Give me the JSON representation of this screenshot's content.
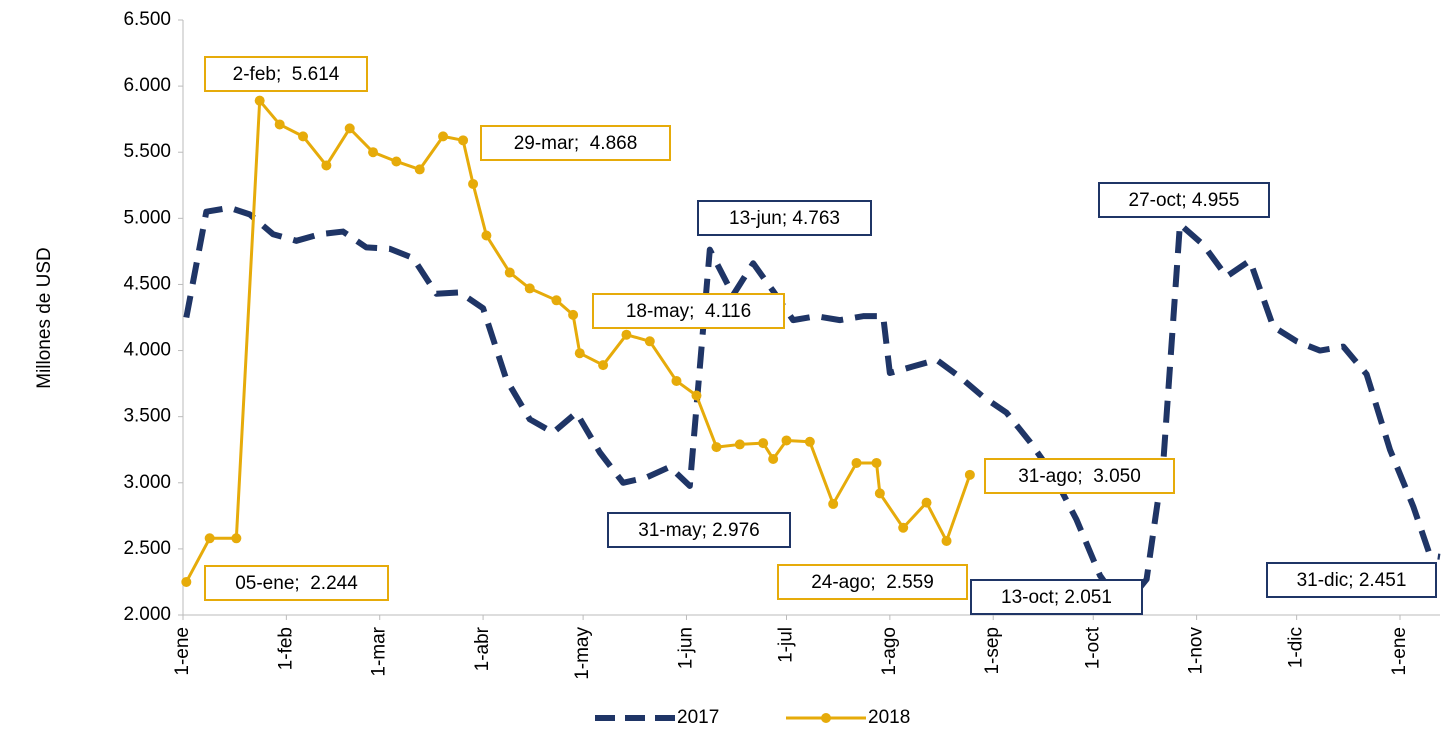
{
  "chart_data": {
    "type": "line",
    "y_label": "Millones de USD",
    "ylim": [
      2000,
      6500
    ],
    "yticks": [
      {
        "value": 2000,
        "label": "2.000"
      },
      {
        "value": 2500,
        "label": "2.500"
      },
      {
        "value": 3000,
        "label": "3.000"
      },
      {
        "value": 3500,
        "label": "3.500"
      },
      {
        "value": 4000,
        "label": "4.000"
      },
      {
        "value": 4500,
        "label": "4.500"
      },
      {
        "value": 5000,
        "label": "5.000"
      },
      {
        "value": 5500,
        "label": "5.500"
      },
      {
        "value": 6000,
        "label": "6.000"
      },
      {
        "value": 6500,
        "label": "6.500"
      }
    ],
    "xlim": [
      0,
      377
    ],
    "xticks": [
      {
        "value": 0,
        "label": "1-ene"
      },
      {
        "value": 31,
        "label": "1-feb"
      },
      {
        "value": 59,
        "label": "1-mar"
      },
      {
        "value": 90,
        "label": "1-abr"
      },
      {
        "value": 120,
        "label": "1-may"
      },
      {
        "value": 151,
        "label": "1-jun"
      },
      {
        "value": 181,
        "label": "1-jul"
      },
      {
        "value": 212,
        "label": "1-ago"
      },
      {
        "value": 243,
        "label": "1-sep"
      },
      {
        "value": 273,
        "label": "1-oct"
      },
      {
        "value": 304,
        "label": "1-nov"
      },
      {
        "value": 334,
        "label": "1-dic"
      },
      {
        "value": 365,
        "label": "1-ene"
      }
    ],
    "series": [
      {
        "name": "2017",
        "color": "#1f3566",
        "dashed": true,
        "x": [
          1,
          7,
          14,
          20,
          27,
          34,
          41,
          48,
          55,
          62,
          69,
          76,
          83,
          90,
          97,
          104,
          111,
          118,
          125,
          132,
          139,
          146,
          152,
          158,
          165,
          171,
          177,
          183,
          190,
          197,
          204,
          210,
          212,
          219,
          226,
          233,
          240,
          247,
          254,
          261,
          268,
          275,
          282,
          289,
          294,
          299,
          306,
          313,
          320,
          327,
          334,
          341,
          348,
          355,
          362,
          369,
          374,
          377
        ],
        "values": [
          4250,
          5050,
          5080,
          5030,
          4880,
          4830,
          4880,
          4900,
          4780,
          4770,
          4700,
          4430,
          4440,
          4320,
          3780,
          3480,
          3380,
          3530,
          3230,
          3000,
          3040,
          3120,
          2976,
          4763,
          4420,
          4660,
          4450,
          4230,
          4260,
          4230,
          4260,
          4260,
          3830,
          3880,
          3930,
          3800,
          3650,
          3530,
          3310,
          3060,
          2720,
          2300,
          2051,
          2270,
          3150,
          4955,
          4800,
          4560,
          4680,
          4180,
          4070,
          4000,
          4030,
          3820,
          3250,
          2820,
          2451,
          2440
        ]
      },
      {
        "name": "2018",
        "color": "#e6ab0a",
        "dashed": false,
        "x": [
          1,
          8,
          16,
          23,
          29,
          36,
          43,
          50,
          57,
          64,
          71,
          78,
          84,
          87,
          91,
          98,
          104,
          112,
          117,
          119,
          126,
          133,
          140,
          148,
          154,
          160,
          167,
          174,
          177,
          181,
          188,
          195,
          202,
          208,
          209,
          216,
          223,
          229,
          236
        ],
        "values": [
          2250,
          2580,
          2580,
          5890,
          5710,
          5620,
          5400,
          5680,
          5500,
          5430,
          5370,
          5620,
          5590,
          5260,
          4870,
          4590,
          4470,
          4380,
          4270,
          3980,
          3890,
          4120,
          4070,
          3770,
          3660,
          3270,
          3290,
          3300,
          3180,
          3320,
          3310,
          2840,
          3150,
          3150,
          2920,
          2660,
          2850,
          2560,
          3060
        ]
      }
    ],
    "annotations": [
      "05-ene;  2.244",
      "2-feb;  5.614",
      "29-mar;  4.868",
      "18-may;  4.116",
      "31-ago;  3.050",
      "24-ago;  2.559",
      "13-jun; 4.763",
      "31-may; 2.976",
      "27-oct; 4.955",
      "13-oct; 2.051",
      "31-dic; 2.451"
    ]
  }
}
